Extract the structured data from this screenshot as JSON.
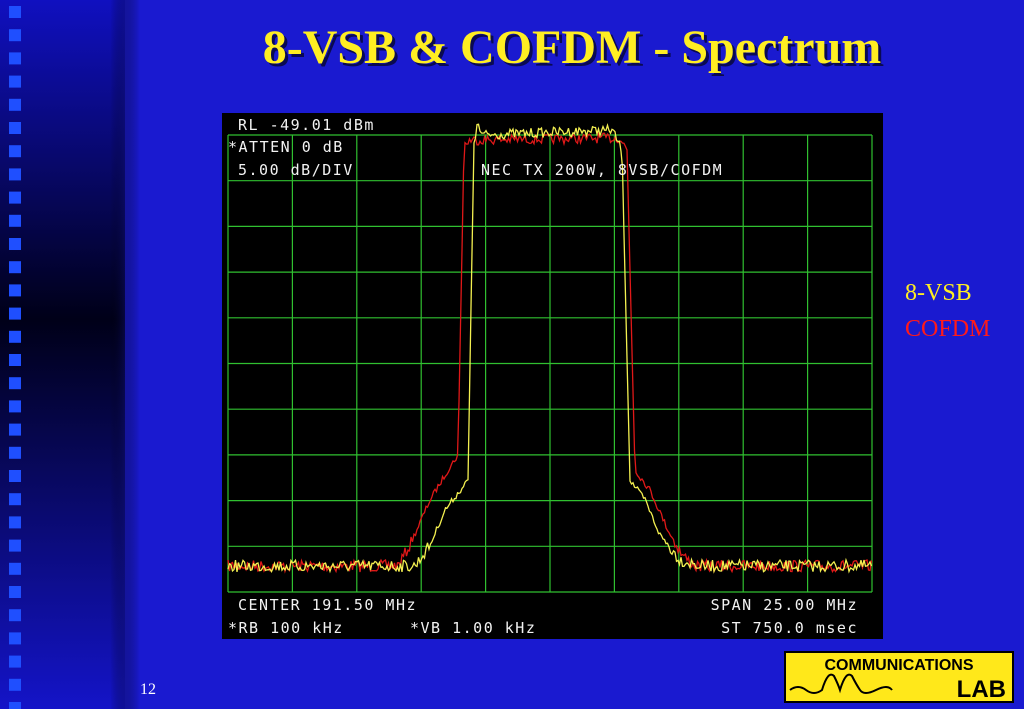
{
  "slide": {
    "title": "8-VSB & COFDM - Spectrum",
    "page_number": "12"
  },
  "screen": {
    "top_lines": [
      "RL -49.01 dBm",
      "*ATTEN 0 dB",
      "5.00 dB/DIV"
    ],
    "trace_label": "NEC TX 200W, 8VSB/COFDM",
    "bottom_left": [
      "CENTER 191.50 MHz",
      "*RB 100 kHz"
    ],
    "bottom_middle": "*VB 1.00 kHz",
    "bottom_right": [
      "SPAN 25.00 MHz",
      "ST 750.0 msec"
    ]
  },
  "legend": [
    "8-VSB",
    "COFDM"
  ],
  "logo": {
    "top": "COMMUNICATIONS",
    "bottom": "LAB"
  }
}
